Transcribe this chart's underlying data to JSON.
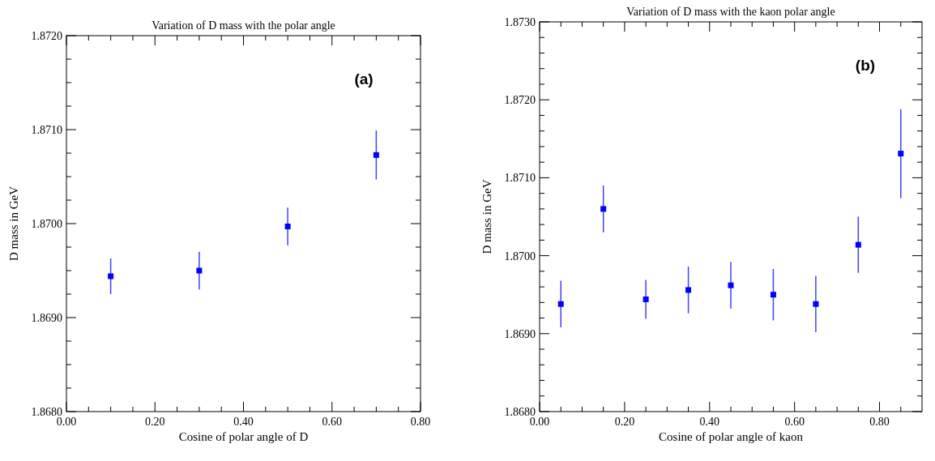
{
  "chart_data": [
    {
      "type": "scatter",
      "title": "Variation of D mass with the polar angle",
      "xlabel": "Cosine of polar angle of D",
      "ylabel": "D mass in GeV",
      "annotations": [
        "(a)"
      ],
      "marker": "square",
      "grid": false,
      "x": [
        0.1,
        0.3,
        0.5,
        0.7
      ],
      "series": [
        {
          "color": "#0000ff",
          "values": [
            1.86944,
            1.8695,
            1.86997,
            1.87073
          ],
          "errors": [
            0.00019,
            0.0002,
            0.0002,
            0.00026
          ]
        }
      ],
      "xlim": [
        0,
        0.8
      ],
      "ylim": [
        1.868,
        1.872
      ],
      "xticks": [
        {
          "value": 0,
          "label": "0.00"
        },
        {
          "value": 0.05,
          "label": null
        },
        {
          "value": 0.1,
          "label": null
        },
        {
          "value": 0.15,
          "label": null
        },
        {
          "value": 0.2,
          "label": "0.20"
        },
        {
          "value": 0.25,
          "label": null
        },
        {
          "value": 0.3,
          "label": null
        },
        {
          "value": 0.35,
          "label": null
        },
        {
          "value": 0.4,
          "label": "0.40"
        },
        {
          "value": 0.45,
          "label": null
        },
        {
          "value": 0.5,
          "label": null
        },
        {
          "value": 0.55,
          "label": null
        },
        {
          "value": 0.6,
          "label": "0.60"
        },
        {
          "value": 0.65,
          "label": null
        },
        {
          "value": 0.7,
          "label": null
        },
        {
          "value": 0.75,
          "label": null
        },
        {
          "value": 0.8,
          "label": "0.80"
        }
      ],
      "yticks": [
        {
          "value": 1.868,
          "label": "1.8680"
        },
        {
          "value": 1.86825,
          "label": null
        },
        {
          "value": 1.8685,
          "label": null
        },
        {
          "value": 1.86875,
          "label": null
        },
        {
          "value": 1.869,
          "label": "1.8690"
        },
        {
          "value": 1.86925,
          "label": null
        },
        {
          "value": 1.8695,
          "label": null
        },
        {
          "value": 1.86975,
          "label": null
        },
        {
          "value": 1.87,
          "label": "1.8700"
        },
        {
          "value": 1.87025,
          "label": null
        },
        {
          "value": 1.8705,
          "label": null
        },
        {
          "value": 1.87075,
          "label": null
        },
        {
          "value": 1.871,
          "label": "1.8710"
        },
        {
          "value": 1.87125,
          "label": null
        },
        {
          "value": 1.8715,
          "label": null
        },
        {
          "value": 1.87175,
          "label": null
        },
        {
          "value": 1.872,
          "label": "1.8720"
        }
      ]
    },
    {
      "type": "scatter",
      "title": "Variation of D mass with the kaon polar angle",
      "xlabel": "Cosine of polar angle of kaon",
      "ylabel": "D mass in GeV",
      "annotations": [
        "(b)"
      ],
      "marker": "square",
      "grid": false,
      "x": [
        0.05,
        0.15,
        0.25,
        0.35,
        0.45,
        0.55,
        0.65,
        0.75,
        0.85
      ],
      "series": [
        {
          "color": "#0000ff",
          "values": [
            1.86938,
            1.8706,
            1.86944,
            1.86956,
            1.86962,
            1.8695,
            1.86938,
            1.87014,
            1.87131
          ],
          "errors": [
            0.0003,
            0.0003,
            0.00025,
            0.0003,
            0.0003,
            0.00033,
            0.00036,
            0.00036,
            0.00057
          ]
        }
      ],
      "xlim": [
        0,
        0.9
      ],
      "ylim": [
        1.868,
        1.873
      ],
      "xticks": [
        {
          "value": 0,
          "label": "0.00"
        },
        {
          "value": 0.05,
          "label": null
        },
        {
          "value": 0.1,
          "label": null
        },
        {
          "value": 0.15,
          "label": null
        },
        {
          "value": 0.2,
          "label": "0.20"
        },
        {
          "value": 0.25,
          "label": null
        },
        {
          "value": 0.3,
          "label": null
        },
        {
          "value": 0.35,
          "label": null
        },
        {
          "value": 0.4,
          "label": "0.40"
        },
        {
          "value": 0.45,
          "label": null
        },
        {
          "value": 0.5,
          "label": null
        },
        {
          "value": 0.55,
          "label": null
        },
        {
          "value": 0.6,
          "label": "0.60"
        },
        {
          "value": 0.65,
          "label": null
        },
        {
          "value": 0.7,
          "label": null
        },
        {
          "value": 0.75,
          "label": null
        },
        {
          "value": 0.8,
          "label": "0.80"
        },
        {
          "value": 0.85,
          "label": null
        }
      ],
      "yticks": [
        {
          "value": 1.868,
          "label": "1.8680"
        },
        {
          "value": 1.8682,
          "label": null
        },
        {
          "value": 1.8684,
          "label": null
        },
        {
          "value": 1.8686,
          "label": null
        },
        {
          "value": 1.8688,
          "label": null
        },
        {
          "value": 1.869,
          "label": "1.8690"
        },
        {
          "value": 1.8692,
          "label": null
        },
        {
          "value": 1.8694,
          "label": null
        },
        {
          "value": 1.8696,
          "label": null
        },
        {
          "value": 1.8698,
          "label": null
        },
        {
          "value": 1.87,
          "label": "1.8700"
        },
        {
          "value": 1.8702,
          "label": null
        },
        {
          "value": 1.8704,
          "label": null
        },
        {
          "value": 1.8706,
          "label": null
        },
        {
          "value": 1.8708,
          "label": null
        },
        {
          "value": 1.871,
          "label": "1.8710"
        },
        {
          "value": 1.8712,
          "label": null
        },
        {
          "value": 1.8714,
          "label": null
        },
        {
          "value": 1.8716,
          "label": null
        },
        {
          "value": 1.8718,
          "label": null
        },
        {
          "value": 1.872,
          "label": "1.8720"
        },
        {
          "value": 1.8722,
          "label": null
        },
        {
          "value": 1.8724,
          "label": null
        },
        {
          "value": 1.8726,
          "label": null
        },
        {
          "value": 1.8728,
          "label": null
        },
        {
          "value": 1.873,
          "label": "1.8730"
        }
      ]
    }
  ]
}
